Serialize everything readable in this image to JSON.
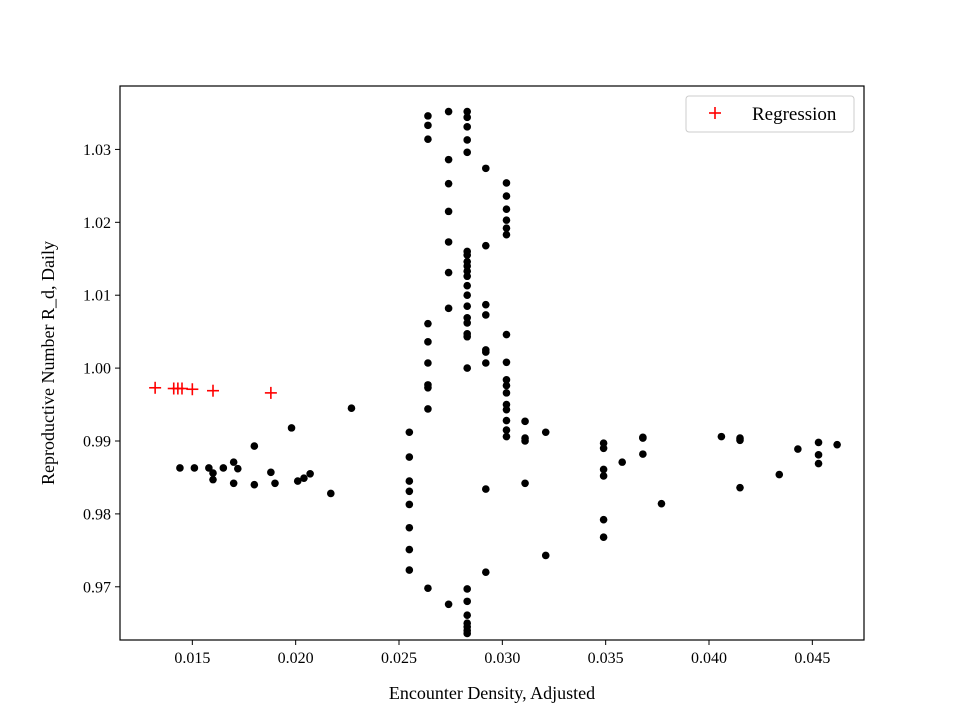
{
  "chart_data": {
    "type": "scatter",
    "title": "",
    "xlabel": "Encounter Density, Adjusted",
    "ylabel": "Reproductive Number R_d, Daily",
    "xlim": [
      0.0115,
      0.0475
    ],
    "ylim": [
      0.9627,
      1.0387
    ],
    "xticks": [
      0.015,
      0.02,
      0.025,
      0.03,
      0.035,
      0.04,
      0.045
    ],
    "xtick_labels": [
      "0.015",
      "0.020",
      "0.025",
      "0.030",
      "0.035",
      "0.040",
      "0.045"
    ],
    "yticks": [
      0.97,
      0.98,
      0.99,
      1.0,
      1.01,
      1.02,
      1.03
    ],
    "ytick_labels": [
      "0.97",
      "0.98",
      "0.99",
      "1.00",
      "1.01",
      "1.02",
      "1.03"
    ],
    "grid": false,
    "legend_position": "top-right",
    "colors": {
      "data": "#000000",
      "regression": "#ff0000",
      "axes": "#000000"
    },
    "series": [
      {
        "marker": "dot",
        "color": "#000000",
        "points": [
          [
            0.0144,
            0.9863
          ],
          [
            0.0151,
            0.9863
          ],
          [
            0.0158,
            0.9863
          ],
          [
            0.016,
            0.9856
          ],
          [
            0.016,
            0.9847
          ],
          [
            0.0165,
            0.9863
          ],
          [
            0.017,
            0.9871
          ],
          [
            0.017,
            0.9842
          ],
          [
            0.0172,
            0.9862
          ],
          [
            0.018,
            0.9893
          ],
          [
            0.018,
            0.984
          ],
          [
            0.0188,
            0.9857
          ],
          [
            0.019,
            0.9842
          ],
          [
            0.0198,
            0.9918
          ],
          [
            0.0201,
            0.9845
          ],
          [
            0.0204,
            0.9849
          ],
          [
            0.0207,
            0.9855
          ],
          [
            0.0217,
            0.9828
          ],
          [
            0.0227,
            0.9945
          ],
          [
            0.0255,
            0.9912
          ],
          [
            0.0255,
            0.9878
          ],
          [
            0.0255,
            0.9845
          ],
          [
            0.0255,
            0.9831
          ],
          [
            0.0255,
            0.9813
          ],
          [
            0.0255,
            0.9781
          ],
          [
            0.0255,
            0.9751
          ],
          [
            0.0255,
            0.9723
          ],
          [
            0.0264,
            1.0346
          ],
          [
            0.0264,
            1.0333
          ],
          [
            0.0264,
            1.0314
          ],
          [
            0.0264,
            1.0061
          ],
          [
            0.0264,
            1.0036
          ],
          [
            0.0264,
            1.0007
          ],
          [
            0.0264,
            0.9977
          ],
          [
            0.0264,
            0.9973
          ],
          [
            0.0264,
            0.9944
          ],
          [
            0.0264,
            0.9698
          ],
          [
            0.0274,
            1.0352
          ],
          [
            0.0274,
            1.0286
          ],
          [
            0.0274,
            1.0253
          ],
          [
            0.0274,
            1.0215
          ],
          [
            0.0274,
            1.0173
          ],
          [
            0.0274,
            1.0131
          ],
          [
            0.0274,
            1.0082
          ],
          [
            0.0274,
            0.9676
          ],
          [
            0.0283,
            1.0352
          ],
          [
            0.0283,
            1.0344
          ],
          [
            0.0283,
            1.0331
          ],
          [
            0.0283,
            1.0313
          ],
          [
            0.0283,
            1.0296
          ],
          [
            0.0283,
            1.016
          ],
          [
            0.0283,
            1.0155
          ],
          [
            0.0283,
            1.0146
          ],
          [
            0.0283,
            1.014
          ],
          [
            0.0283,
            1.0133
          ],
          [
            0.0283,
            1.0126
          ],
          [
            0.0283,
            1.0113
          ],
          [
            0.0283,
            1.01
          ],
          [
            0.0283,
            1.0085
          ],
          [
            0.0283,
            1.0069
          ],
          [
            0.0283,
            1.0062
          ],
          [
            0.0283,
            1.0047
          ],
          [
            0.0283,
            1.0043
          ],
          [
            0.0283,
            1.0
          ],
          [
            0.0283,
            0.9697
          ],
          [
            0.0283,
            0.968
          ],
          [
            0.0283,
            0.9661
          ],
          [
            0.0283,
            0.965
          ],
          [
            0.0283,
            0.9645
          ],
          [
            0.0283,
            0.964
          ],
          [
            0.0283,
            0.9636
          ],
          [
            0.0292,
            1.0274
          ],
          [
            0.0292,
            1.0168
          ],
          [
            0.0292,
            1.0087
          ],
          [
            0.0292,
            1.0073
          ],
          [
            0.0292,
            1.0025
          ],
          [
            0.0292,
            1.0022
          ],
          [
            0.0292,
            1.0007
          ],
          [
            0.0292,
            0.9834
          ],
          [
            0.0292,
            0.972
          ],
          [
            0.0302,
            1.0254
          ],
          [
            0.0302,
            1.0236
          ],
          [
            0.0302,
            1.0218
          ],
          [
            0.0302,
            1.0203
          ],
          [
            0.0302,
            1.0192
          ],
          [
            0.0302,
            1.0183
          ],
          [
            0.0302,
            1.0046
          ],
          [
            0.0302,
            1.0008
          ],
          [
            0.0302,
            0.9984
          ],
          [
            0.0302,
            0.9976
          ],
          [
            0.0302,
            0.9966
          ],
          [
            0.0302,
            0.995
          ],
          [
            0.0302,
            0.9943
          ],
          [
            0.0302,
            0.9928
          ],
          [
            0.0302,
            0.9915
          ],
          [
            0.0302,
            0.9906
          ],
          [
            0.0311,
            0.9927
          ],
          [
            0.0311,
            0.9904
          ],
          [
            0.0311,
            0.99
          ],
          [
            0.0311,
            0.9842
          ],
          [
            0.0321,
            0.9912
          ],
          [
            0.0321,
            0.9743
          ],
          [
            0.0349,
            0.9897
          ],
          [
            0.0349,
            0.989
          ],
          [
            0.0349,
            0.9861
          ],
          [
            0.0349,
            0.9852
          ],
          [
            0.0349,
            0.9792
          ],
          [
            0.0349,
            0.9768
          ],
          [
            0.0358,
            0.9871
          ],
          [
            0.0368,
            0.9905
          ],
          [
            0.0368,
            0.9904
          ],
          [
            0.0368,
            0.9882
          ],
          [
            0.0377,
            0.9814
          ],
          [
            0.0406,
            0.9906
          ],
          [
            0.0415,
            0.9904
          ],
          [
            0.0415,
            0.9901
          ],
          [
            0.0415,
            0.9836
          ],
          [
            0.0434,
            0.9854
          ],
          [
            0.0443,
            0.9889
          ],
          [
            0.0453,
            0.9898
          ],
          [
            0.0453,
            0.9881
          ],
          [
            0.0453,
            0.9869
          ],
          [
            0.0462,
            0.9895
          ]
        ]
      },
      {
        "name": "Regression",
        "marker": "plus",
        "color": "#ff0000",
        "points": [
          [
            0.0132,
            0.9973
          ],
          [
            0.0141,
            0.9972
          ],
          [
            0.0143,
            0.9972
          ],
          [
            0.0145,
            0.9972
          ],
          [
            0.015,
            0.9971
          ],
          [
            0.016,
            0.9969
          ],
          [
            0.0188,
            0.9966
          ]
        ]
      }
    ]
  }
}
